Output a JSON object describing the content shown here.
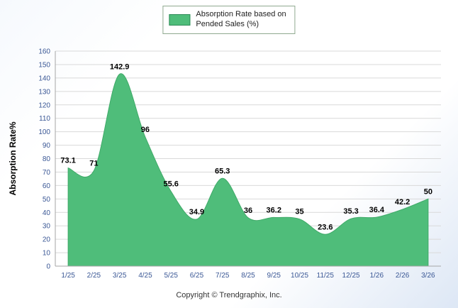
{
  "page": {
    "footer": "Copyright © Trendgraphix, Inc."
  },
  "legend": {
    "label_line1": "Absorption Rate based on",
    "label_line2": "Pended Sales (%)"
  },
  "chart_data": {
    "type": "area",
    "title": "Absorption Rate based on Pended Sales (%)",
    "categories": [
      "1/25",
      "2/25",
      "3/25",
      "4/25",
      "5/25",
      "6/25",
      "7/25",
      "8/25",
      "9/25",
      "10/25",
      "11/25",
      "12/25",
      "1/26",
      "2/26",
      "3/26"
    ],
    "values": [
      73.1,
      71,
      142.9,
      96,
      55.6,
      34.9,
      65.3,
      36,
      36.2,
      35,
      23.6,
      35.3,
      36.4,
      42.2,
      50
    ],
    "xlabel": "",
    "ylabel": "Absorption Rate%",
    "ylim": [
      0,
      160
    ],
    "ytick_step": 10,
    "grid": true,
    "legend_position": "top",
    "colors": {
      "area_fill": "#4fbd7a",
      "area_stroke": "#3faa68",
      "axis_text": "#3a5795",
      "label_text": "#000000",
      "grid_line": "#d9d9d9",
      "axis_line": "#a6a6a6",
      "ylabel_text": "#000000"
    }
  }
}
